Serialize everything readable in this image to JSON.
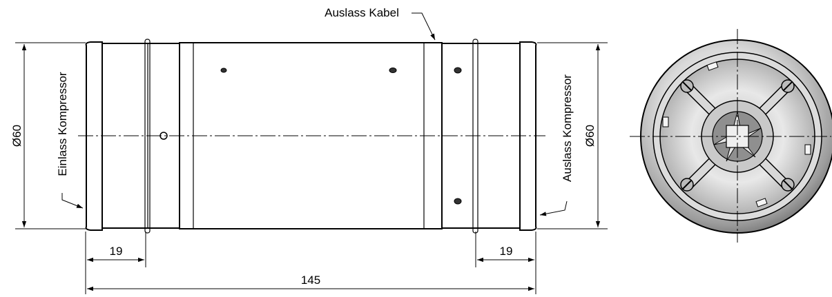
{
  "labels": {
    "outlet_cable": "Auslass Kabel",
    "inlet_compressor": "Einlass Kompressor",
    "outlet_compressor": "Auslass Kompressor",
    "diameter_left": "Ø60",
    "diameter_right": "Ø60",
    "length_left_section": "19",
    "length_right_section": "19",
    "length_total": "145"
  },
  "colors": {
    "line": "#000000",
    "metal_light": "#f4f4f4",
    "metal_mid": "#bdbdbd",
    "metal_dark": "#6e6e6e"
  }
}
